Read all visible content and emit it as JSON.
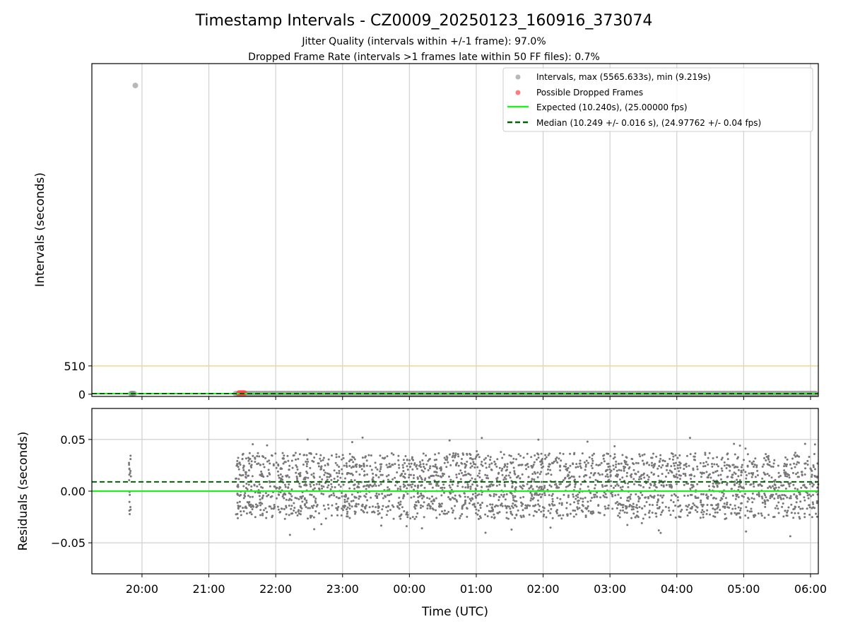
{
  "chart_data": [
    {
      "type": "scatter",
      "title": "Timestamp Intervals - CZ0009_20250123_160916_373074",
      "subtitle_1": "Jitter Quality (intervals within +/-1 frame): 97.0%",
      "subtitle_2": "Dropped Frame Rate (intervals >1 frames late within 50 FF files): 0.7%",
      "ylabel": "Intervals (seconds)",
      "ylim": [
        -40,
        5960
      ],
      "yticks": [
        0,
        510
      ],
      "ytick_labels": [
        "0",
        "510"
      ],
      "x_start": "2025-01-23T19:15",
      "x_end": "2025-01-24T06:07",
      "xticks": [
        "2025-01-23T20:00",
        "2025-01-23T21:00",
        "2025-01-23T22:00",
        "2025-01-23T23:00",
        "2025-01-24T00:00",
        "2025-01-24T01:00",
        "2025-01-24T02:00",
        "2025-01-24T03:00",
        "2025-01-24T04:00",
        "2025-01-24T05:00",
        "2025-01-24T06:00"
      ],
      "grid": "x",
      "reference_line": {
        "y": 510,
        "color": "#f5d48a"
      },
      "series": [
        {
          "name": "Intervals, max (5565.633s), min (9.219s)",
          "style": "scatter",
          "color": "#888888",
          "points": [
            {
              "x": "2025-01-23T19:50",
              "y": 10.25
            },
            {
              "x": "2025-01-23T19:51",
              "y": 10.25
            },
            {
              "x": "2025-01-23T19:52",
              "y": 10.24
            },
            {
              "x": "2025-01-23T19:53",
              "y": 10.25
            },
            {
              "x": "2025-01-23T19:54",
              "y": 5565.633
            },
            {
              "x": "2025-01-23T21:24",
              "y": 10.25
            }
          ],
          "band": {
            "x_from": "2025-01-23T21:24",
            "x_to": "2025-01-24T06:07",
            "y": 10.25
          }
        },
        {
          "name": "Possible Dropped Frames",
          "style": "scatter",
          "color": "#ff4444",
          "points": [
            {
              "x": "2025-01-23T21:27",
              "y": 20.5
            },
            {
              "x": "2025-01-23T21:28",
              "y": 20.5
            },
            {
              "x": "2025-01-23T21:29",
              "y": 20.5
            },
            {
              "x": "2025-01-23T21:30",
              "y": 20.5
            },
            {
              "x": "2025-01-23T21:31",
              "y": 20.5
            },
            {
              "x": "2025-01-23T21:32",
              "y": 20.5
            }
          ]
        },
        {
          "name": "Expected (10.240s), (25.00000 fps)",
          "style": "line",
          "color": "#22ee22",
          "y": 10.24
        },
        {
          "name": "Median (10.249 +/- 0.016 s), (24.97762 +/- 0.04 fps)",
          "style": "dashed",
          "color": "#006400",
          "y": 10.249
        }
      ],
      "legend": "top-right"
    },
    {
      "type": "scatter",
      "ylabel": "Residuals (seconds)",
      "xlabel": "Time (UTC)",
      "ylim": [
        -0.08,
        0.08
      ],
      "yticks": [
        0.05,
        0.0,
        -0.05
      ],
      "ytick_labels": [
        "0.05",
        "0.00",
        "−0.05"
      ],
      "xtick_labels": [
        "20:00",
        "21:00",
        "22:00",
        "23:00",
        "00:00",
        "01:00",
        "02:00",
        "03:00",
        "04:00",
        "05:00",
        "06:00"
      ],
      "grid": "both",
      "expected_line": {
        "y": 0.0,
        "color": "#22ee22"
      },
      "median_line": {
        "y": 0.009,
        "color": "#006400"
      },
      "residual_points": {
        "color": "#777777",
        "early_cluster": {
          "x_from": "2025-01-23T19:48",
          "x_to": "2025-01-23T19:50",
          "y_min": -0.03,
          "y_max": 0.04
        },
        "main_cloud": {
          "x_from": "2025-01-23T21:24",
          "x_to": "2025-01-24T06:07",
          "y_min": -0.044,
          "y_max": 0.054,
          "center": 0.009
        }
      }
    }
  ]
}
